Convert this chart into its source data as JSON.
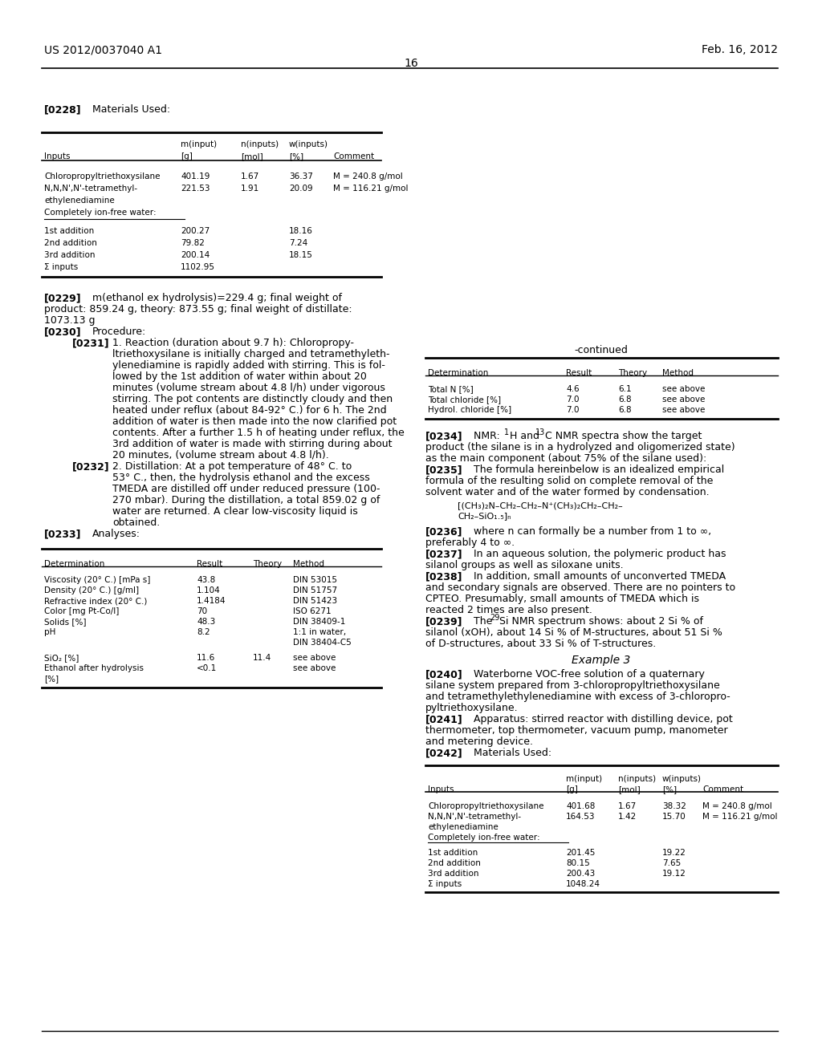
{
  "bg_color": "#ffffff",
  "header_left": "US 2012/0037040 A1",
  "header_right": "Feb. 16, 2012",
  "page_number": "16"
}
